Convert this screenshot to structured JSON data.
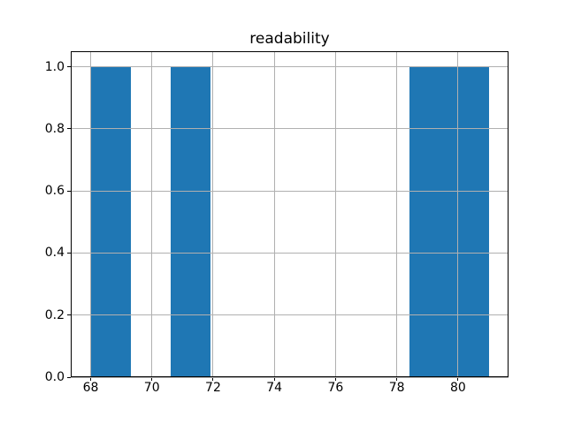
{
  "figure": {
    "background": "#ffffff"
  },
  "chart_data": {
    "type": "histogram",
    "title": "readability",
    "xlabel": "",
    "ylabel": "",
    "bin_edges": [
      68.0,
      69.3,
      70.6,
      71.9,
      73.2,
      74.5,
      75.8,
      77.1,
      78.4,
      79.7,
      81.0
    ],
    "counts": [
      1,
      0,
      1,
      0,
      0,
      0,
      0,
      0,
      1,
      1
    ],
    "xticks": [
      68,
      70,
      72,
      74,
      76,
      78,
      80
    ],
    "xtick_labels": [
      "68",
      "70",
      "72",
      "74",
      "76",
      "78",
      "80"
    ],
    "yticks": [
      0.0,
      0.2,
      0.4,
      0.6,
      0.8,
      1.0
    ],
    "ytick_labels": [
      "0.0",
      "0.2",
      "0.4",
      "0.6",
      "0.8",
      "1.0"
    ],
    "xlim": [
      67.35,
      81.65
    ],
    "ylim": [
      0,
      1.05
    ],
    "grid": true,
    "grid_above_bars": true,
    "legend": null,
    "bar_color": "#1f77b4",
    "grid_color": "#b0b0b0",
    "spine_color": "#000000",
    "text_color": "#000000"
  }
}
